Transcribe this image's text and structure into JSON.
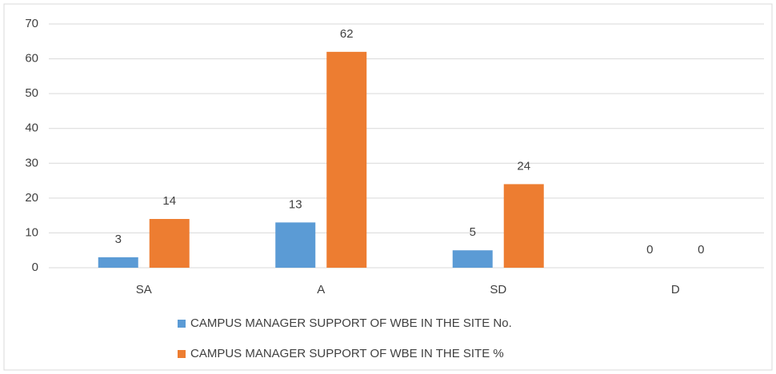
{
  "chart_data": {
    "type": "bar",
    "categories": [
      "SA",
      "A",
      "SD",
      "D"
    ],
    "series": [
      {
        "name": "CAMPUS MANAGER SUPPORT OF WBE IN THE SITE No.",
        "color": "#5b9bd5",
        "values": [
          3,
          13,
          5,
          0
        ]
      },
      {
        "name": "CAMPUS MANAGER SUPPORT OF WBE IN THE SITE %",
        "color": "#ed7d31",
        "values": [
          14,
          62,
          24,
          0
        ]
      }
    ],
    "ylim": [
      0,
      70
    ],
    "yticks": [
      0,
      10,
      20,
      30,
      40,
      50,
      60,
      70
    ],
    "grid": true,
    "legend": "bottom"
  }
}
